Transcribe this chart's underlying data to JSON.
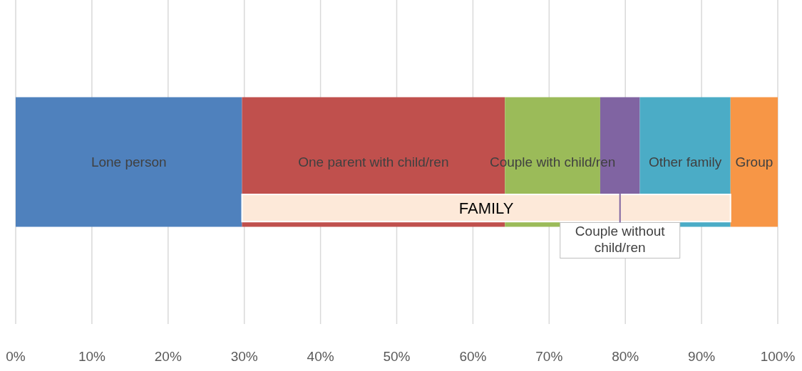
{
  "chart_data": {
    "type": "bar",
    "orientation": "horizontal",
    "stacked": true,
    "categories": [
      null
    ],
    "series": [
      {
        "name": "Lone person",
        "color": "#4f81bd",
        "values": [
          29.7
        ]
      },
      {
        "name": "One parent with child/ren",
        "color": "#c0504d",
        "values": [
          34.5
        ]
      },
      {
        "name": "Couple with child/ren",
        "color": "#9bbb59",
        "values": [
          12.5
        ]
      },
      {
        "name": "Couple without child/ren",
        "color": "#8064a2",
        "values": [
          5.2
        ]
      },
      {
        "name": "Other family",
        "color": "#4bacc6",
        "values": [
          11.9
        ]
      },
      {
        "name": "Group",
        "color": "#f79646",
        "values": [
          6.2
        ]
      }
    ],
    "xlim": [
      0,
      100
    ],
    "xticks": [
      {
        "value": 0,
        "label": "0%"
      },
      {
        "value": 10,
        "label": "10%"
      },
      {
        "value": 20,
        "label": "20%"
      },
      {
        "value": 30,
        "label": "30%"
      },
      {
        "value": 40,
        "label": "40%"
      },
      {
        "value": 50,
        "label": "50%"
      },
      {
        "value": 60,
        "label": "60%"
      },
      {
        "value": 70,
        "label": "70%"
      },
      {
        "value": 80,
        "label": "80%"
      },
      {
        "value": 90,
        "label": "90%"
      },
      {
        "value": 100,
        "label": "100%"
      }
    ],
    "grid": "x",
    "bands": [
      {
        "axis": "x",
        "from": 29.7,
        "to": 93.8,
        "label": "FAMILY",
        "color": "#fde9d9"
      }
    ]
  }
}
